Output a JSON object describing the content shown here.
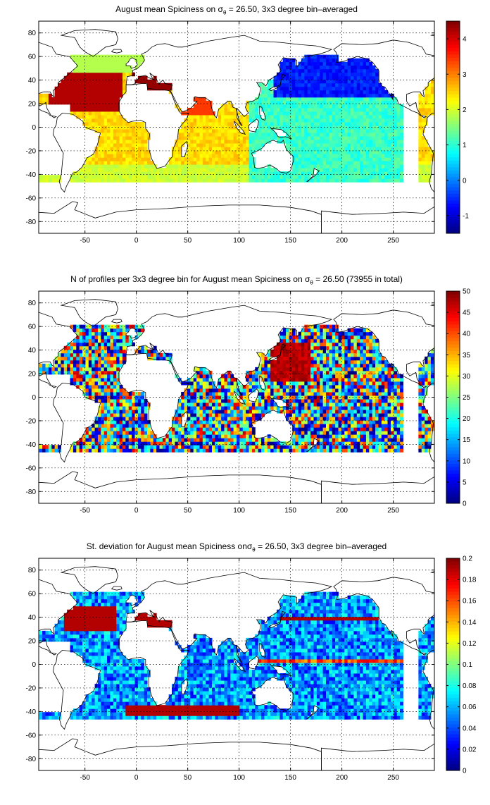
{
  "chart_data": [
    {
      "type": "heatmap",
      "title_prefix": "August mean Spiciness on ",
      "title_sigma": "σ",
      "title_sub": "θ",
      "title_suffix": " = 26.50, 3x3 degree bin–averaged",
      "xlim": [
        -95,
        290
      ],
      "ylim": [
        -90,
        90
      ],
      "x_ticks": [
        "-50",
        "0",
        "50",
        "100",
        "150",
        "200",
        "250"
      ],
      "y_ticks": [
        "80",
        "60",
        "40",
        "20",
        "0",
        "-20",
        "-40",
        "-60",
        "-80"
      ],
      "colorbar_range": [
        -1.5,
        4.5
      ],
      "colorbar_ticks": [
        "4",
        "3",
        "2",
        "1",
        "0",
        "-1"
      ],
      "grid": true
    },
    {
      "type": "heatmap",
      "title_prefix": "N of profiles per 3x3 degree bin for August mean Spiciness on ",
      "title_sigma": "σ",
      "title_sub": "θ",
      "title_suffix": " = 26.50 (73955 in total)",
      "xlim": [
        -95,
        290
      ],
      "ylim": [
        -90,
        90
      ],
      "x_ticks": [
        "-50",
        "0",
        "50",
        "100",
        "150",
        "200",
        "250"
      ],
      "y_ticks": [
        "80",
        "60",
        "40",
        "20",
        "0",
        "-20",
        "-40",
        "-60",
        "-80"
      ],
      "colorbar_range": [
        0,
        50
      ],
      "colorbar_ticks": [
        "50",
        "45",
        "40",
        "35",
        "30",
        "25",
        "20",
        "15",
        "10",
        "5",
        "0"
      ],
      "grid": true
    },
    {
      "type": "heatmap",
      "title_prefix": "St. deviation for August mean Spiciness on",
      "title_sigma": "σ",
      "title_sub": "θ",
      "title_suffix": " = 26.50, 3x3 degree bin–averaged",
      "xlim": [
        -95,
        290
      ],
      "ylim": [
        -90,
        90
      ],
      "x_ticks": [
        "-50",
        "0",
        "50",
        "100",
        "150",
        "200",
        "250"
      ],
      "y_ticks": [
        "80",
        "60",
        "40",
        "20",
        "0",
        "-20",
        "-40",
        "-60",
        "-80"
      ],
      "colorbar_range": [
        0,
        0.2
      ],
      "colorbar_ticks": [
        "0.2",
        "0.18",
        "0.16",
        "0.14",
        "0.12",
        "0.1",
        "0.08",
        "0.06",
        "0.04",
        "0.02",
        "0"
      ],
      "grid": true
    }
  ]
}
